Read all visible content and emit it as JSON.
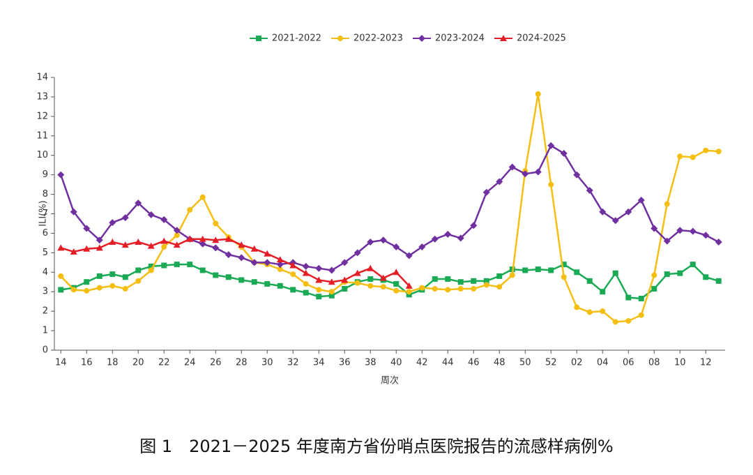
{
  "chart_data": {
    "type": "line",
    "categories": [
      "14",
      null,
      "16",
      null,
      "18",
      null,
      "20",
      null,
      "22",
      null,
      "24",
      null,
      "26",
      null,
      "28",
      null,
      "30",
      null,
      "32",
      null,
      "34",
      null,
      "36",
      null,
      "38",
      null,
      "40",
      null,
      "42",
      null,
      "44",
      null,
      "46",
      null,
      "48",
      null,
      "50",
      null,
      "52",
      null,
      "02",
      null,
      "04",
      null,
      "06",
      null,
      "08",
      null,
      "10",
      null,
      "12",
      null
    ],
    "xlabel": "周次",
    "ylabel": "ILI(%)",
    "caption": "图 1　2021－2025 年度南方省份哨点医院报告的流感样病例%",
    "ylim": [
      0,
      14
    ],
    "yticks": [
      0,
      1,
      2,
      3,
      4,
      5,
      6,
      7,
      8,
      9,
      10,
      11,
      12,
      13,
      14
    ],
    "legend": "top",
    "series": [
      {
        "name": "2021-2022",
        "color": "#1aaa55",
        "marker": "square",
        "values": [
          3.1,
          3.2,
          3.5,
          3.8,
          3.9,
          3.75,
          4.1,
          4.3,
          4.35,
          4.4,
          4.4,
          4.1,
          3.85,
          3.75,
          3.6,
          3.5,
          3.4,
          3.3,
          3.1,
          2.95,
          2.75,
          2.8,
          3.15,
          3.5,
          3.65,
          3.6,
          3.4,
          2.85,
          3.1,
          3.65,
          3.65,
          3.5,
          3.55,
          3.55,
          3.8,
          4.15,
          4.1,
          4.15,
          4.1,
          4.4,
          4.0,
          3.55,
          3.0,
          3.95,
          2.7,
          2.65,
          3.15,
          3.9,
          3.95,
          4.4,
          3.75,
          3.55
        ]
      },
      {
        "name": "2022-2023",
        "color": "#f5be12",
        "marker": "circle",
        "values": [
          3.8,
          3.1,
          3.05,
          3.2,
          3.3,
          3.15,
          3.55,
          4.1,
          5.3,
          5.9,
          7.2,
          7.85,
          6.5,
          5.8,
          5.3,
          4.5,
          4.4,
          4.15,
          3.9,
          3.4,
          3.1,
          3.0,
          3.5,
          3.45,
          3.3,
          3.25,
          3.05,
          3.0,
          3.2,
          3.15,
          3.1,
          3.15,
          3.15,
          3.35,
          3.25,
          3.85,
          9.2,
          13.15,
          8.5,
          3.75,
          2.2,
          1.95,
          2.0,
          1.45,
          1.5,
          1.8,
          3.85,
          7.5,
          9.95,
          9.9,
          10.25,
          10.2
        ]
      },
      {
        "name": "2023-2024",
        "color": "#7030a0",
        "marker": "diamond",
        "values": [
          9.0,
          7.1,
          6.25,
          5.65,
          6.55,
          6.8,
          7.55,
          6.95,
          6.7,
          6.15,
          5.7,
          5.45,
          5.25,
          4.9,
          4.75,
          4.5,
          4.5,
          4.4,
          4.5,
          4.3,
          4.2,
          4.1,
          4.5,
          5.0,
          5.55,
          5.65,
          5.3,
          4.85,
          5.3,
          5.7,
          5.95,
          5.75,
          6.4,
          8.1,
          8.65,
          9.4,
          9.05,
          9.15,
          10.5,
          10.1,
          9.0,
          8.2,
          7.1,
          6.65,
          7.1,
          7.7,
          6.25,
          5.6,
          6.15,
          6.1,
          5.9,
          5.55
        ]
      },
      {
        "name": "2024-2025",
        "color": "#e41e26",
        "marker": "triangle",
        "values": [
          5.25,
          5.05,
          5.2,
          5.25,
          5.55,
          5.4,
          5.55,
          5.35,
          5.6,
          5.4,
          5.7,
          5.7,
          5.65,
          5.7,
          5.4,
          5.2,
          4.95,
          4.65,
          4.35,
          3.95,
          3.6,
          3.5,
          3.6,
          3.95,
          4.2,
          3.7,
          4.0,
          3.3,
          null,
          null,
          null,
          null,
          null,
          null,
          null,
          null,
          null,
          null,
          null,
          null,
          null,
          null,
          null,
          null,
          null,
          null,
          null,
          null,
          null,
          null,
          null,
          null
        ]
      }
    ]
  }
}
